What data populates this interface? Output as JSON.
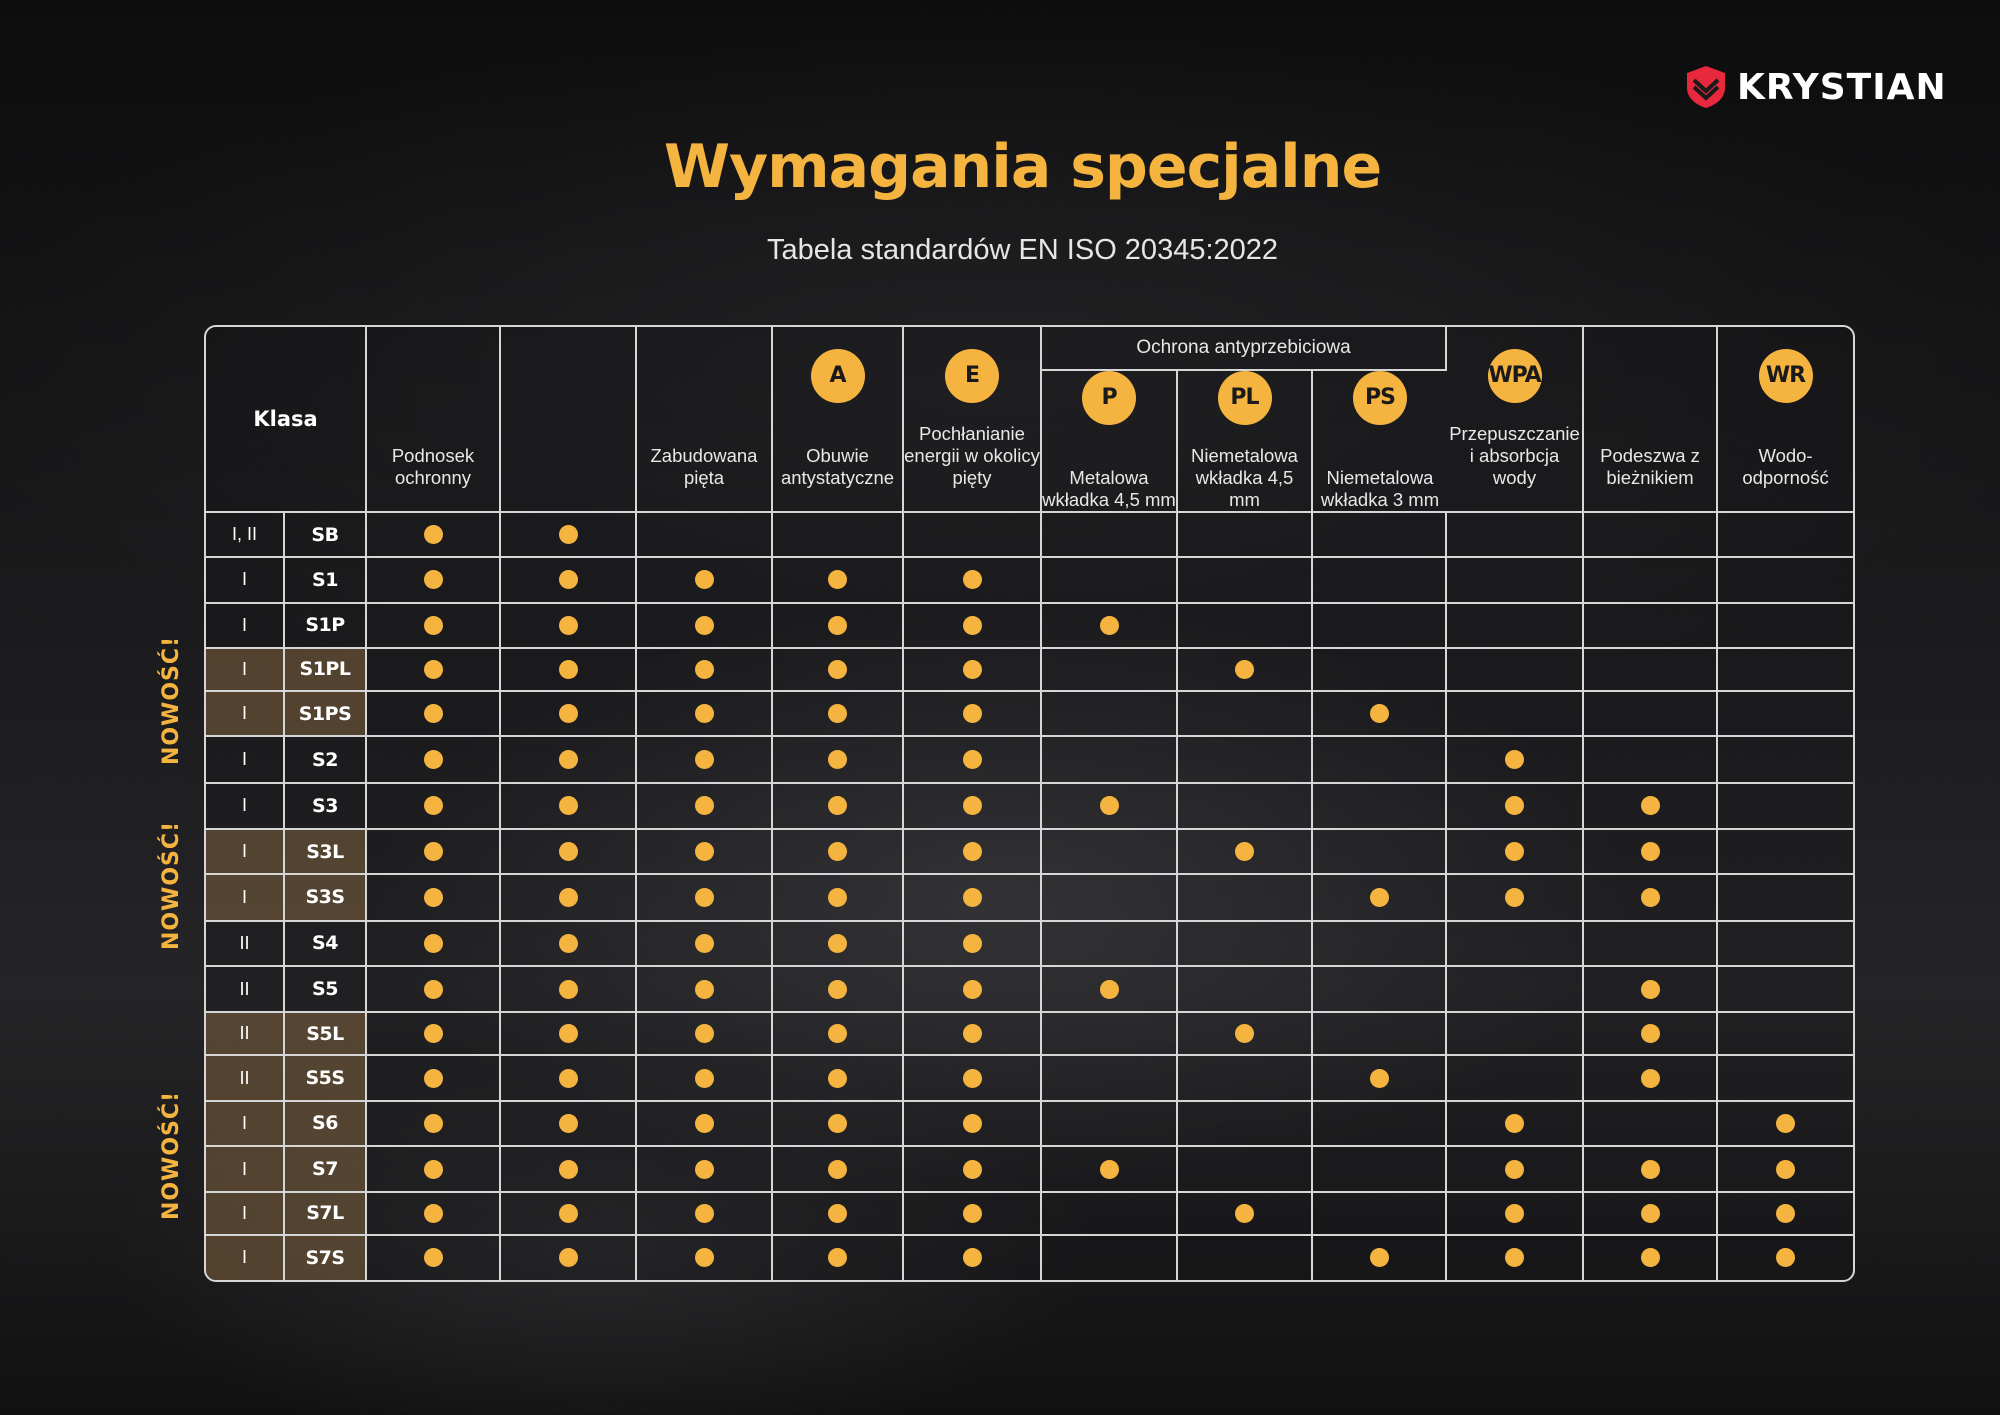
{
  "brand": {
    "name": "KRYSTIAN",
    "logo_color": "#e8283c"
  },
  "title": "Wymagania specjalne",
  "subtitle": "Tabela standardów EN ISO 20345:2022",
  "accent_color": "#f5b440",
  "side_label": "NOWOŚĆ!",
  "table": {
    "klasa_header": "Klasa",
    "group_header": "Ochrona antyprzebiciowa",
    "columns": [
      {
        "badge": "",
        "label": "Podnosek ochronny"
      },
      {
        "badge": "",
        "label": ""
      },
      {
        "badge": "",
        "label": "Zabudowana pięta"
      },
      {
        "badge": "A",
        "label": "Obuwie antystatyczne"
      },
      {
        "badge": "E",
        "label": "Pochłanianie energii w okolicy pięty"
      },
      {
        "badge": "P",
        "label": "Metalowa wkładka 4,5 mm"
      },
      {
        "badge": "PL",
        "label": "Niemetalowa wkładka 4,5 mm"
      },
      {
        "badge": "PS",
        "label": "Niemetalowa wkładka 3 mm"
      },
      {
        "badge": "WPA",
        "label": "Przepuszczanie i absorbcja wody"
      },
      {
        "badge": "",
        "label": "Podeszwa z bieżnikiem"
      },
      {
        "badge": "WR",
        "label": "Wodo-odporność"
      }
    ],
    "rows": [
      {
        "klasa": "I, II",
        "code": "SB",
        "new": false,
        "marks": [
          1,
          1,
          0,
          0,
          0,
          0,
          0,
          0,
          0,
          0,
          0
        ]
      },
      {
        "klasa": "I",
        "code": "S1",
        "new": false,
        "marks": [
          1,
          1,
          1,
          1,
          1,
          0,
          0,
          0,
          0,
          0,
          0
        ]
      },
      {
        "klasa": "I",
        "code": "S1P",
        "new": false,
        "marks": [
          1,
          1,
          1,
          1,
          1,
          1,
          0,
          0,
          0,
          0,
          0
        ]
      },
      {
        "klasa": "I",
        "code": "S1PL",
        "new": true,
        "marks": [
          1,
          1,
          1,
          1,
          1,
          0,
          1,
          0,
          0,
          0,
          0
        ]
      },
      {
        "klasa": "I",
        "code": "S1PS",
        "new": true,
        "marks": [
          1,
          1,
          1,
          1,
          1,
          0,
          0,
          1,
          0,
          0,
          0
        ]
      },
      {
        "klasa": "I",
        "code": "S2",
        "new": false,
        "marks": [
          1,
          1,
          1,
          1,
          1,
          0,
          0,
          0,
          1,
          0,
          0
        ]
      },
      {
        "klasa": "I",
        "code": "S3",
        "new": false,
        "marks": [
          1,
          1,
          1,
          1,
          1,
          1,
          0,
          0,
          1,
          1,
          0
        ]
      },
      {
        "klasa": "I",
        "code": "S3L",
        "new": true,
        "marks": [
          1,
          1,
          1,
          1,
          1,
          0,
          1,
          0,
          1,
          1,
          0
        ]
      },
      {
        "klasa": "I",
        "code": "S3S",
        "new": true,
        "marks": [
          1,
          1,
          1,
          1,
          1,
          0,
          0,
          1,
          1,
          1,
          0
        ]
      },
      {
        "klasa": "II",
        "code": "S4",
        "new": false,
        "marks": [
          1,
          1,
          1,
          1,
          1,
          0,
          0,
          0,
          0,
          0,
          0
        ]
      },
      {
        "klasa": "II",
        "code": "S5",
        "new": false,
        "marks": [
          1,
          1,
          1,
          1,
          1,
          1,
          0,
          0,
          0,
          1,
          0
        ]
      },
      {
        "klasa": "II",
        "code": "S5L",
        "new": true,
        "marks": [
          1,
          1,
          1,
          1,
          1,
          0,
          1,
          0,
          0,
          1,
          0
        ]
      },
      {
        "klasa": "II",
        "code": "S5S",
        "new": true,
        "marks": [
          1,
          1,
          1,
          1,
          1,
          0,
          0,
          1,
          0,
          1,
          0
        ]
      },
      {
        "klasa": "I",
        "code": "S6",
        "new": true,
        "marks": [
          1,
          1,
          1,
          1,
          1,
          0,
          0,
          0,
          1,
          0,
          1
        ]
      },
      {
        "klasa": "I",
        "code": "S7",
        "new": true,
        "marks": [
          1,
          1,
          1,
          1,
          1,
          1,
          0,
          0,
          1,
          1,
          1
        ]
      },
      {
        "klasa": "I",
        "code": "S7L",
        "new": true,
        "marks": [
          1,
          1,
          1,
          1,
          1,
          0,
          1,
          0,
          1,
          1,
          1
        ]
      },
      {
        "klasa": "I",
        "code": "S7S",
        "new": true,
        "marks": [
          1,
          1,
          1,
          1,
          1,
          0,
          0,
          1,
          1,
          1,
          1
        ]
      }
    ]
  }
}
